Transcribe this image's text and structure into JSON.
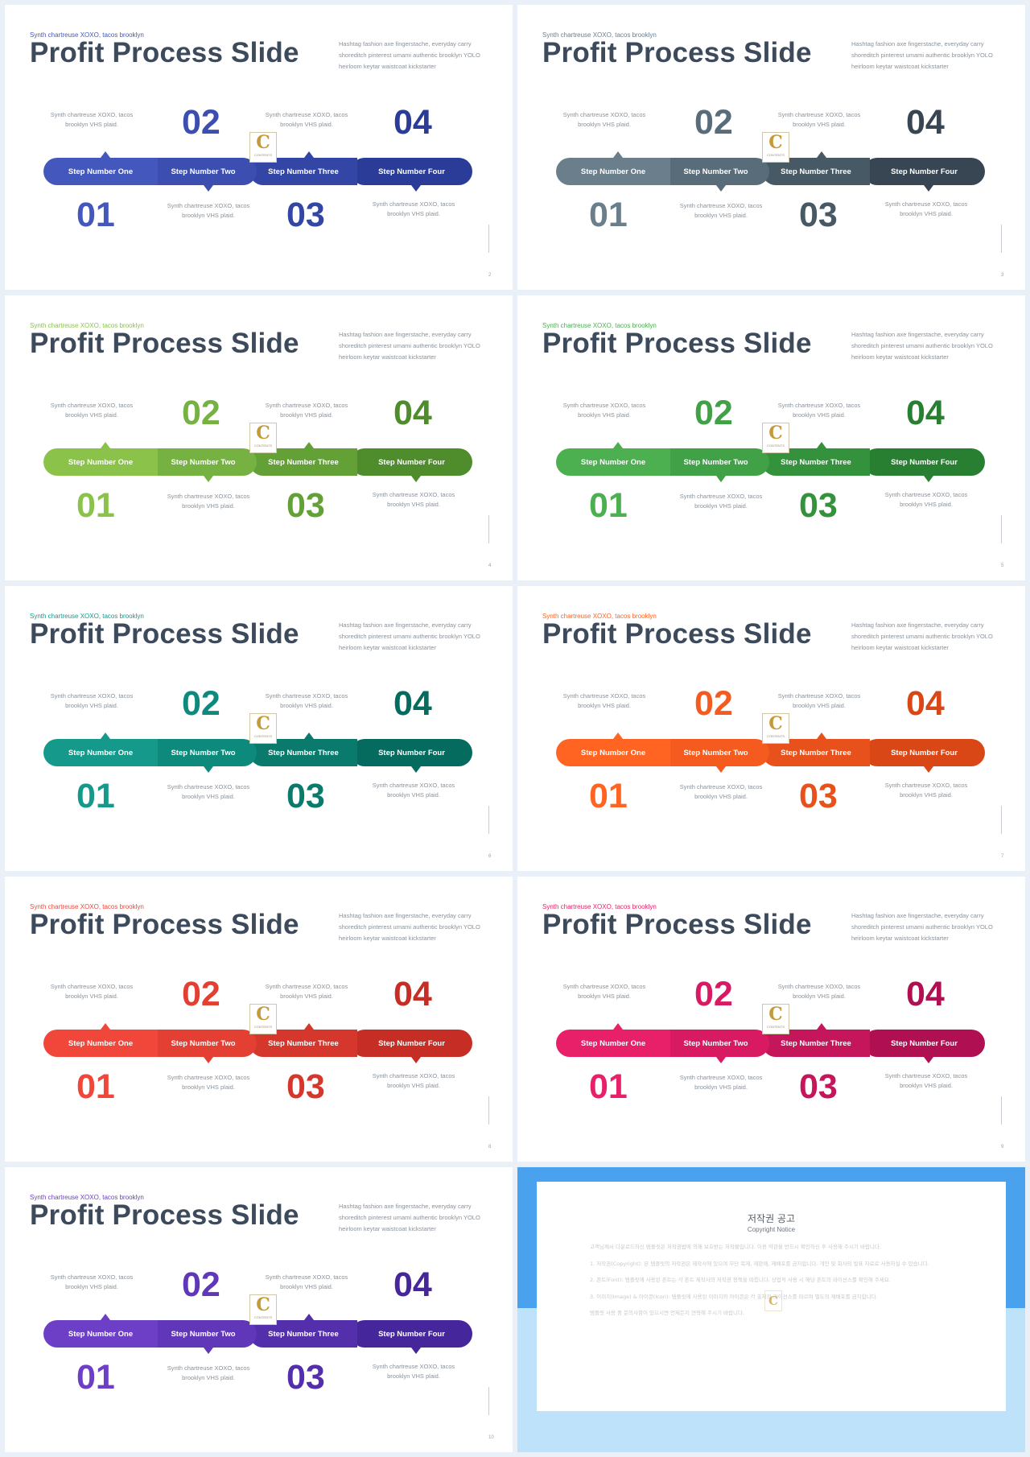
{
  "slide_common": {
    "kicker": "Synth chartreuse XOXO, tacos brooklyn",
    "title": "Profit Process Slide",
    "description": "Hashtag fashion axe fingerstache, everyday carry shoreditch pinterest umami authentic brooklyn YOLO heirloom keytar waistcoat kickstarter",
    "step_text": "Synth chartreuse XOXO, tacos brooklyn VHS plaid.",
    "steps": [
      {
        "number": "01",
        "label": "Step Number One"
      },
      {
        "number": "02",
        "label": "Step Number Two"
      },
      {
        "number": "03",
        "label": "Step Number Three"
      },
      {
        "number": "04",
        "label": "Step Number Four"
      }
    ],
    "logo_letter": "C",
    "logo_caption": "CONTENTS"
  },
  "slides": [
    {
      "page": "2",
      "colors": [
        "#4457bd",
        "#3c4fb1",
        "#3446a5",
        "#2b3c98"
      ]
    },
    {
      "page": "3",
      "colors": [
        "#6a7e8c",
        "#596c79",
        "#485966",
        "#374652"
      ]
    },
    {
      "page": "4",
      "colors": [
        "#8bc34a",
        "#76b241",
        "#63a136",
        "#4e8c2c"
      ]
    },
    {
      "page": "5",
      "colors": [
        "#4caf50",
        "#40a146",
        "#34913c",
        "#287f32"
      ]
    },
    {
      "page": "6",
      "colors": [
        "#14998a",
        "#0e8a7c",
        "#0a7a6d",
        "#066b5f"
      ]
    },
    {
      "page": "7",
      "colors": [
        "#ff6423",
        "#f55a1f",
        "#e8511b",
        "#d94717"
      ]
    },
    {
      "page": "8",
      "colors": [
        "#f0473a",
        "#e33f33",
        "#d5372c",
        "#c62e25"
      ]
    },
    {
      "page": "9",
      "colors": [
        "#e8206a",
        "#d81a63",
        "#c5155b",
        "#b01052"
      ]
    },
    {
      "page": "10",
      "colors": [
        "#6c3fc6",
        "#5f37b8",
        "#532fab",
        "#46279b"
      ]
    }
  ],
  "copyright": {
    "title": "저작권 공고",
    "subtitle": "Copyright Notice",
    "paragraphs": [
      "고객님께서 다운로드하신 템플릿은 저작권법에 의해 보호받는 저작물입니다. 이용 약관을 반드시 확인하신 후 사용해 주시기 바랍니다.",
      "1. 저작권(Copyright): 본 템플릿의 저작권은 제작사에 있으며 무단 복제, 재판매, 재배포를 금지합니다. 개인 및 회사의 발표 자료로 사용하실 수 있습니다.",
      "2. 폰트(Font): 템플릿에 사용된 폰트는 각 폰트 제작사의 저작권 정책을 따릅니다. 상업적 사용 시 해당 폰트의 라이선스를 확인해 주세요.",
      "3. 이미지(Image) & 아이콘(Icon): 템플릿에 사용된 이미지와 아이콘은 각 출처의 라이선스를 따르며 별도의 재배포를 금지합니다.",
      "템플릿 사용 중 문의사항이 있으시면 언제든지 연락해 주시기 바랍니다."
    ]
  }
}
